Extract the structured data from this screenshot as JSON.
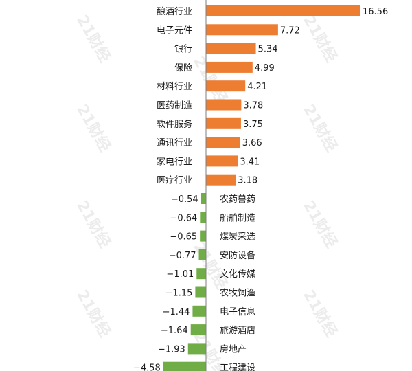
{
  "chart_data": {
    "type": "bar",
    "orientation": "horizontal",
    "categories": [
      "酿酒行业",
      "电子元件",
      "银行",
      "保险",
      "材料行业",
      "医药制造",
      "软件服务",
      "通讯行业",
      "家电行业",
      "医疗行业",
      "农药兽药",
      "船舶制造",
      "煤炭采选",
      "安防设备",
      "文化传媒",
      "农牧饲渔",
      "电子信息",
      "旅游酒店",
      "房地产",
      "工程建设"
    ],
    "values": [
      16.56,
      7.72,
      5.34,
      4.99,
      4.21,
      3.78,
      3.75,
      3.66,
      3.41,
      3.18,
      -0.54,
      -0.64,
      -0.65,
      -0.77,
      -1.01,
      -1.15,
      -1.44,
      -1.64,
      -1.93,
      -4.58
    ],
    "value_labels": [
      "16.56",
      "7.72",
      "5.34",
      "4.99",
      "4.21",
      "3.78",
      "3.75",
      "3.66",
      "3.41",
      "3.18",
      "−0.54",
      "−0.64",
      "−0.65",
      "−0.77",
      "−1.01",
      "−1.15",
      "−1.44",
      "−1.64",
      "−1.93",
      "−4.58"
    ],
    "title": "",
    "xlabel": "",
    "ylabel": "",
    "xlim": [
      -4.58,
      16.56
    ],
    "grid": false,
    "legend": "none",
    "colors": {
      "positive": "#ED7D31",
      "negative": "#70AD47",
      "axis": "#7f7f7f",
      "text": "#1a1a1a"
    }
  },
  "watermark": {
    "text": "21财经"
  }
}
